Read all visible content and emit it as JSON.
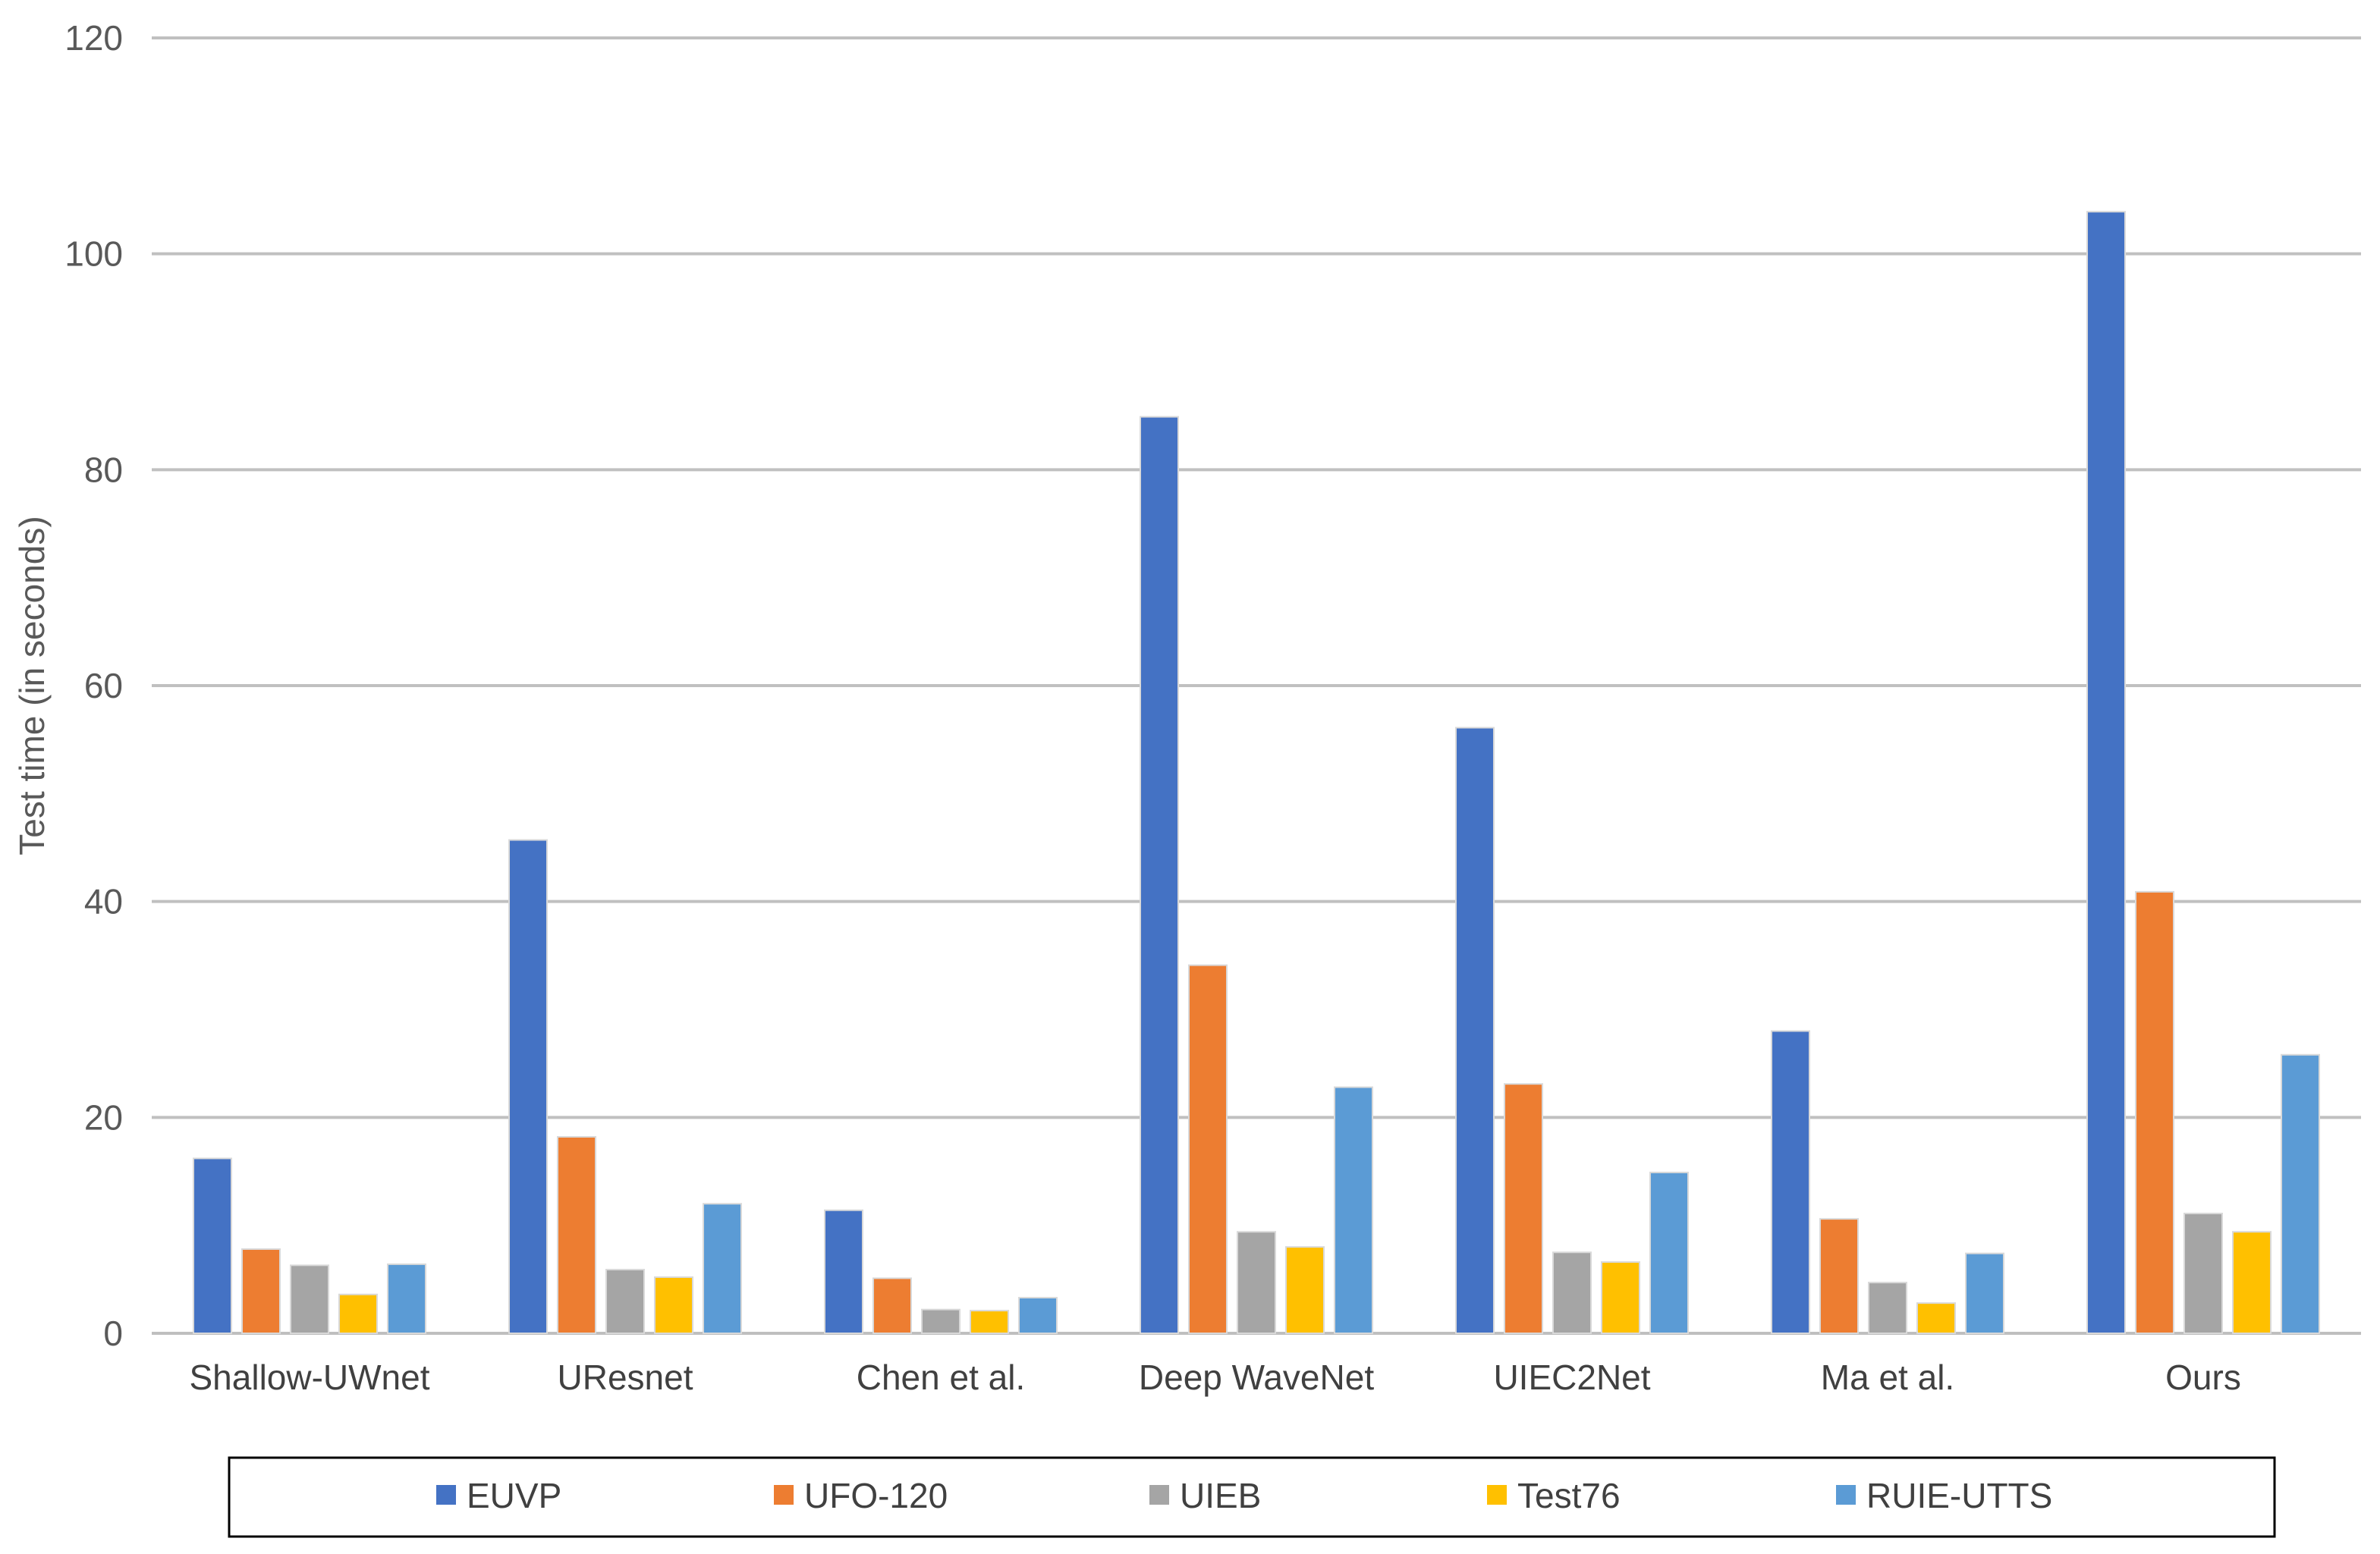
{
  "chart_data": {
    "type": "bar",
    "title": "",
    "xlabel": "",
    "ylabel": "Test time (in seconds)",
    "ylim": [
      0,
      120
    ],
    "yticks": [
      0,
      20,
      40,
      60,
      80,
      100,
      120
    ],
    "grid": true,
    "legend_position": "bottom",
    "categories": [
      "Shallow-UWnet",
      "UResnet",
      "Chen et al.",
      "Deep WaveNet",
      "UIEC2Net",
      "Ma et al.",
      "Ours"
    ],
    "series": [
      {
        "name": "EUVP",
        "color": "#4472C4",
        "values": [
          16.2,
          45.7,
          11.4,
          84.9,
          56.1,
          28.0,
          103.9
        ]
      },
      {
        "name": "UFO-120",
        "color": "#ED7D31",
        "values": [
          7.8,
          18.2,
          5.1,
          34.1,
          23.1,
          10.6,
          40.9
        ]
      },
      {
        "name": "UIEB",
        "color": "#A5A5A5",
        "values": [
          6.3,
          5.9,
          2.2,
          9.4,
          7.5,
          4.7,
          11.1
        ]
      },
      {
        "name": "Test76",
        "color": "#FFC000",
        "values": [
          3.6,
          5.2,
          2.1,
          8.0,
          6.6,
          2.8,
          9.4
        ]
      },
      {
        "name": "RUIE-UTTS",
        "color": "#5B9BD5",
        "values": [
          6.4,
          12.0,
          3.3,
          22.8,
          14.9,
          7.4,
          25.8
        ]
      }
    ]
  }
}
